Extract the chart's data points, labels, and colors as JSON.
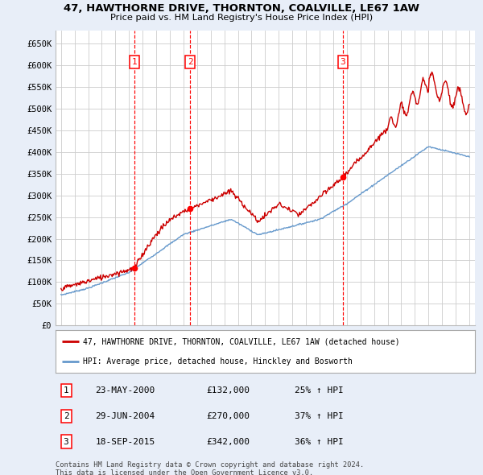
{
  "title1": "47, HAWTHORNE DRIVE, THORNTON, COALVILLE, LE67 1AW",
  "title2": "Price paid vs. HM Land Registry's House Price Index (HPI)",
  "ylim": [
    0,
    680000
  ],
  "yticks": [
    0,
    50000,
    100000,
    150000,
    200000,
    250000,
    300000,
    350000,
    400000,
    450000,
    500000,
    550000,
    600000,
    650000
  ],
  "ytick_labels": [
    "£0",
    "£50K",
    "£100K",
    "£150K",
    "£200K",
    "£250K",
    "£300K",
    "£350K",
    "£400K",
    "£450K",
    "£500K",
    "£550K",
    "£600K",
    "£650K"
  ],
  "xlim_start": 1994.6,
  "xlim_end": 2025.4,
  "bg_color": "#e8eef8",
  "plot_bg": "#ffffff",
  "grid_color": "#cccccc",
  "red_color": "#cc0000",
  "blue_color": "#6699cc",
  "sale1_date": "23-MAY-2000",
  "sale1_price": 132000,
  "sale1_pct": "25%",
  "sale1_x": 2000.38,
  "sale2_date": "29-JUN-2004",
  "sale2_price": 270000,
  "sale2_x": 2004.49,
  "sale2_pct": "37%",
  "sale3_date": "18-SEP-2015",
  "sale3_price": 342000,
  "sale3_x": 2015.71,
  "sale3_pct": "36%",
  "legend_label_red": "47, HAWTHORNE DRIVE, THORNTON, COALVILLE, LE67 1AW (detached house)",
  "legend_label_blue": "HPI: Average price, detached house, Hinckley and Bosworth",
  "footnote1": "Contains HM Land Registry data © Crown copyright and database right 2024.",
  "footnote2": "This data is licensed under the Open Government Licence v3.0."
}
